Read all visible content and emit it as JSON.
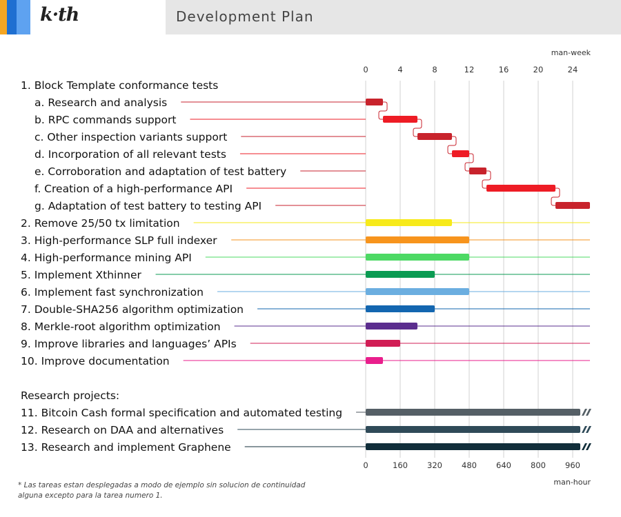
{
  "header": {
    "logo": "k·th",
    "title": "Development Plan",
    "colors": {
      "stripe1": "#f5a623",
      "stripe2": "#1f6fd1",
      "stripe3": "#5ea2f0",
      "background": "#e6e6e6"
    }
  },
  "chart_data": {
    "type": "gantt",
    "top_axis": {
      "unit": "man-week",
      "ticks": [
        0,
        4,
        8,
        12,
        16,
        20,
        24
      ],
      "range": [
        0,
        26
      ]
    },
    "bottom_axis": {
      "unit": "man-hour",
      "ticks": [
        "0",
        "160",
        "320",
        "480",
        "640",
        "800",
        "960"
      ]
    },
    "grid": true,
    "tasks": [
      {
        "label": "1. Block Template conformance tests",
        "indent": 0
      },
      {
        "label": "a. Research and analysis",
        "indent": 1,
        "start": 0,
        "end": 2,
        "color": "#c8232c",
        "dependency": true
      },
      {
        "label": "b. RPC commands support",
        "indent": 1,
        "start": 2,
        "end": 6,
        "color": "#ee1c25",
        "dependency": true
      },
      {
        "label": "c. Other inspection variants support",
        "indent": 1,
        "start": 6,
        "end": 10,
        "color": "#c8232c",
        "dependency": true
      },
      {
        "label": "d. Incorporation of all relevant tests",
        "indent": 1,
        "start": 10,
        "end": 12,
        "color": "#ee1c25",
        "dependency": true
      },
      {
        "label": "e. Corroboration and adaptation of test battery",
        "indent": 1,
        "start": 12,
        "end": 14,
        "color": "#c8232c",
        "dependency": true
      },
      {
        "label": "f. Creation of a high-performance API",
        "indent": 1,
        "start": 14,
        "end": 22,
        "color": "#ee1c25",
        "dependency": true
      },
      {
        "label": "g. Adaptation of test battery to testing API",
        "indent": 1,
        "start": 22,
        "end": 26,
        "color": "#c8232c",
        "dependency": false
      },
      {
        "label": "2. Remove 25/50 tx limitation",
        "indent": 0,
        "start": 0,
        "end": 10,
        "color": "#f7ea1a"
      },
      {
        "label": "3. High-performance SLP full indexer",
        "indent": 0,
        "start": 0,
        "end": 12,
        "color": "#f7941d"
      },
      {
        "label": "4. High-performance mining API",
        "indent": 0,
        "start": 0,
        "end": 12,
        "color": "#4cd964"
      },
      {
        "label": "5. Implement Xthinner",
        "indent": 0,
        "start": 0,
        "end": 8,
        "color": "#0a9b52"
      },
      {
        "label": "6. Implement fast synchronization",
        "indent": 0,
        "start": 0,
        "end": 12,
        "color": "#6baee0"
      },
      {
        "label": "7. Double-SHA256 algorithm optimization",
        "indent": 0,
        "start": 0,
        "end": 8,
        "color": "#1366b0"
      },
      {
        "label": "8. Merkle-root algorithm optimization",
        "indent": 0,
        "start": 0,
        "end": 6,
        "color": "#5b2d8e"
      },
      {
        "label": "9. Improve libraries and languages’ APIs",
        "indent": 0,
        "start": 0,
        "end": 4,
        "color": "#d11d55"
      },
      {
        "label": "10. Improve documentation",
        "indent": 0,
        "start": 0,
        "end": 2,
        "color": "#e91e8c"
      },
      {
        "label": "",
        "indent": 0
      },
      {
        "label": "Research projects:",
        "indent": 0
      },
      {
        "label": "11. Bitcoin Cash formal specification and automated testing",
        "indent": 0,
        "start": 0,
        "end": 26,
        "color": "#555f66",
        "ongoing": true
      },
      {
        "label": "12. Research on DAA and alternatives",
        "indent": 0,
        "start": 0,
        "end": 26,
        "color": "#2f4a58",
        "ongoing": true
      },
      {
        "label": "13. Research and implement Graphene",
        "indent": 0,
        "start": 0,
        "end": 26,
        "color": "#112e3a",
        "ongoing": true
      }
    ]
  },
  "footnote": "* Las tareas estan desplegadas a modo de ejemplo sin solucion de continuidad alguna excepto para la tarea numero 1."
}
